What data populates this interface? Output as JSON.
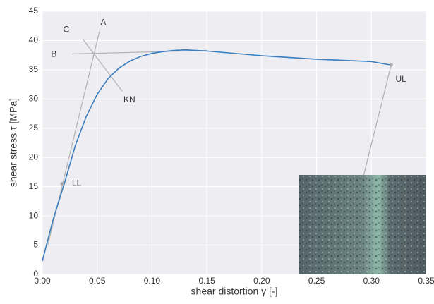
{
  "chart_data": {
    "type": "line",
    "xlabel": "shear distortion γ  [-]",
    "ylabel": "shear stress τ [MPa]",
    "series": [
      {
        "color": "#3a7dbf",
        "x": [
          0,
          0.01,
          0.02,
          0.03,
          0.04,
          0.05,
          0.06,
          0.07,
          0.08,
          0.09,
          0.1,
          0.11,
          0.12,
          0.13,
          0.14,
          0.15,
          0.2,
          0.25,
          0.3,
          0.318
        ],
        "values": [
          2.3,
          9.5,
          15.5,
          22,
          27,
          30.8,
          33.5,
          35.3,
          36.5,
          37.3,
          37.8,
          38.1,
          38.3,
          38.4,
          38.3,
          38.2,
          37.4,
          36.8,
          36.4,
          35.8
        ]
      }
    ],
    "lines": [
      {
        "x": [
          0.005,
          0.052
        ],
        "y": [
          5,
          41.5
        ]
      },
      {
        "x": [
          0.027,
          0.15
        ],
        "y": [
          37.7,
          38.3
        ]
      },
      {
        "x": [
          0.037,
          0.073
        ],
        "y": [
          40.2,
          31.3
        ]
      },
      {
        "x": [
          0.318,
          0.293
        ],
        "y": [
          35.8,
          17
        ]
      }
    ],
    "points": [
      {
        "x": 0.018,
        "y": 15.5
      },
      {
        "x": 0.318,
        "y": 35.8
      }
    ],
    "annotations": [
      {
        "text": "A",
        "x": 0.053,
        "y": 43
      },
      {
        "text": "B",
        "x": 0.008,
        "y": 37.6
      },
      {
        "text": "C",
        "x": 0.019,
        "y": 41.8
      },
      {
        "text": "KN",
        "x": 0.074,
        "y": 29.8
      },
      {
        "text": "LL",
        "x": 0.027,
        "y": 15.5
      },
      {
        "text": "UL",
        "x": 0.322,
        "y": 33.3
      }
    ],
    "xlim": [
      0,
      0.35
    ],
    "ylim": [
      0,
      45
    ],
    "xticks": [
      {
        "value": 0,
        "label": "0.00"
      },
      {
        "value": 0.05,
        "label": "0.05"
      },
      {
        "value": 0.1,
        "label": "0.10"
      },
      {
        "value": 0.15,
        "label": "0.15"
      },
      {
        "value": 0.2,
        "label": "0.20"
      },
      {
        "value": 0.25,
        "label": "0.25"
      },
      {
        "value": 0.3,
        "label": "0.30"
      },
      {
        "value": 0.35,
        "label": "0.35"
      }
    ],
    "yticks": [
      0,
      5,
      10,
      15,
      20,
      25,
      30,
      35,
      40,
      45
    ],
    "grid": true
  }
}
